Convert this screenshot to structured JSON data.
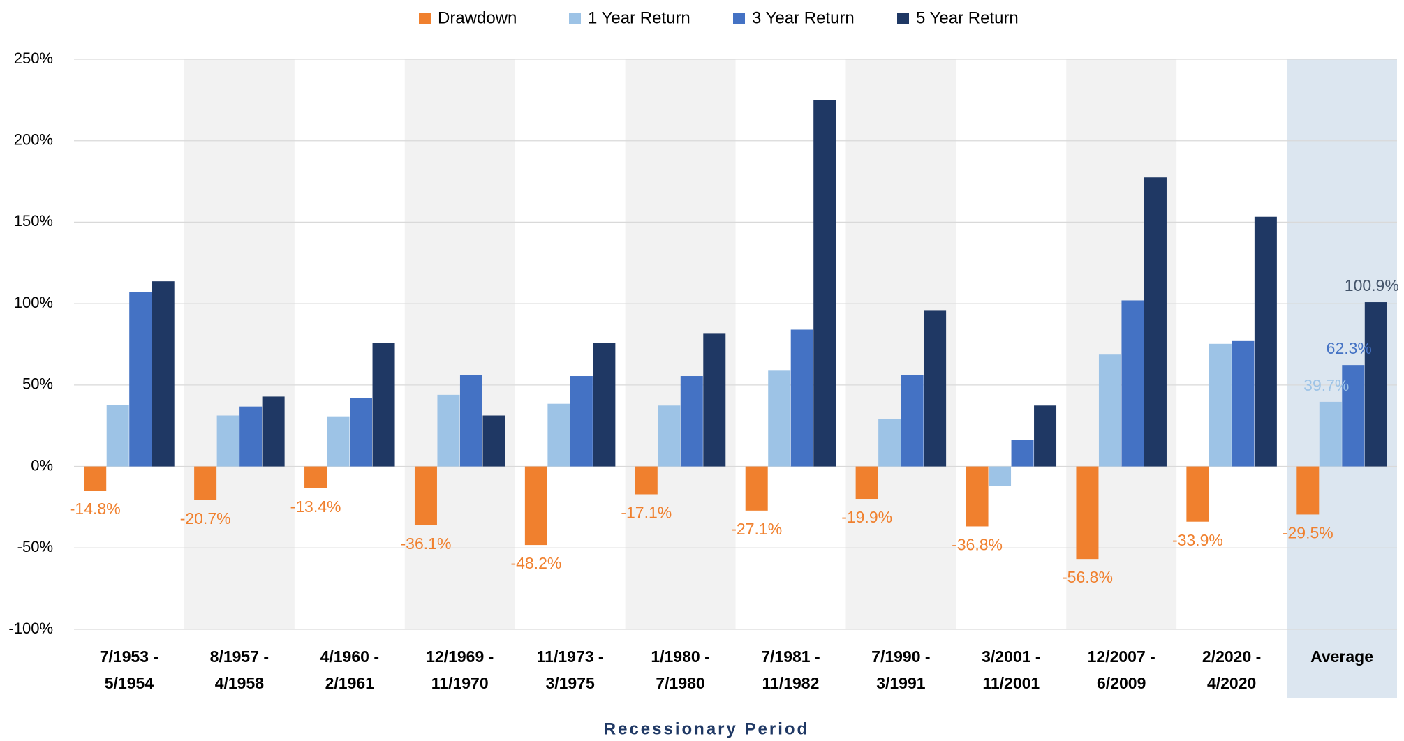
{
  "chart_data": {
    "type": "bar",
    "x_label": "Recessionary Period",
    "categories": [
      [
        "7/1953 -",
        "5/1954"
      ],
      [
        "8/1957 -",
        "4/1958"
      ],
      [
        "4/1960 -",
        "2/1961"
      ],
      [
        "12/1969 -",
        "11/1970"
      ],
      [
        "11/1973 -",
        "3/1975"
      ],
      [
        "1/1980 -",
        "7/1980"
      ],
      [
        "7/1981 -",
        "11/1982"
      ],
      [
        "7/1990 -",
        "3/1991"
      ],
      [
        "3/2001 -",
        "11/2001"
      ],
      [
        "12/2007 -",
        "6/2009"
      ],
      [
        "2/2020 -",
        "4/2020"
      ],
      [
        "Average"
      ]
    ],
    "series": [
      {
        "name": "Drawdown",
        "color": "#f0802e",
        "values": [
          -14.8,
          -20.7,
          -13.4,
          -36.1,
          -48.2,
          -17.1,
          -27.1,
          -19.9,
          -36.8,
          -56.8,
          -33.9,
          -29.5
        ],
        "value_labels": [
          "-14.8%",
          "-20.7%",
          "-13.4%",
          "-36.1%",
          "-48.2%",
          "-17.1%",
          "-27.1%",
          "-19.9%",
          "-36.8%",
          "-56.8%",
          "-33.9%",
          "-29.5%"
        ]
      },
      {
        "name": "1 Year Return",
        "color": "#9dc3e6",
        "values": [
          37.9,
          31.3,
          30.8,
          44,
          38.5,
          37.4,
          58.8,
          29,
          -12,
          68.7,
          75.3,
          39.7
        ],
        "value_labels": [
          null,
          null,
          null,
          null,
          null,
          null,
          null,
          null,
          null,
          null,
          null,
          "39.7%"
        ]
      },
      {
        "name": "3 Year Return",
        "color": "#4472c4",
        "values": [
          107,
          36.8,
          41.8,
          56,
          55.5,
          55.5,
          84,
          56,
          16.5,
          102,
          77,
          62.3
        ],
        "value_labels": [
          null,
          null,
          null,
          null,
          null,
          null,
          null,
          null,
          null,
          null,
          null,
          "62.3%"
        ]
      },
      {
        "name": "5 Year Return",
        "color": "#1f3864",
        "values": [
          113.7,
          42.9,
          75.8,
          31.3,
          75.8,
          81.9,
          225,
          95.6,
          37.4,
          177.5,
          153.3,
          100.9
        ],
        "value_labels": [
          null,
          null,
          null,
          null,
          null,
          null,
          null,
          null,
          null,
          null,
          null,
          "100.9%"
        ]
      }
    ],
    "ylim": [
      -100,
      250
    ],
    "yticks": [
      {
        "value": -100,
        "label": "-100%"
      },
      {
        "value": -50,
        "label": "-50%"
      },
      {
        "value": 0,
        "label": "0%"
      },
      {
        "value": 50,
        "label": "50%"
      },
      {
        "value": 100,
        "label": "100%"
      },
      {
        "value": 150,
        "label": "150%"
      },
      {
        "value": 200,
        "label": "200%"
      },
      {
        "value": 250,
        "label": "250%"
      }
    ],
    "grid": true,
    "legend": "top",
    "band_color": "#f2f2f2",
    "highlight_color": "#dce6f0"
  }
}
